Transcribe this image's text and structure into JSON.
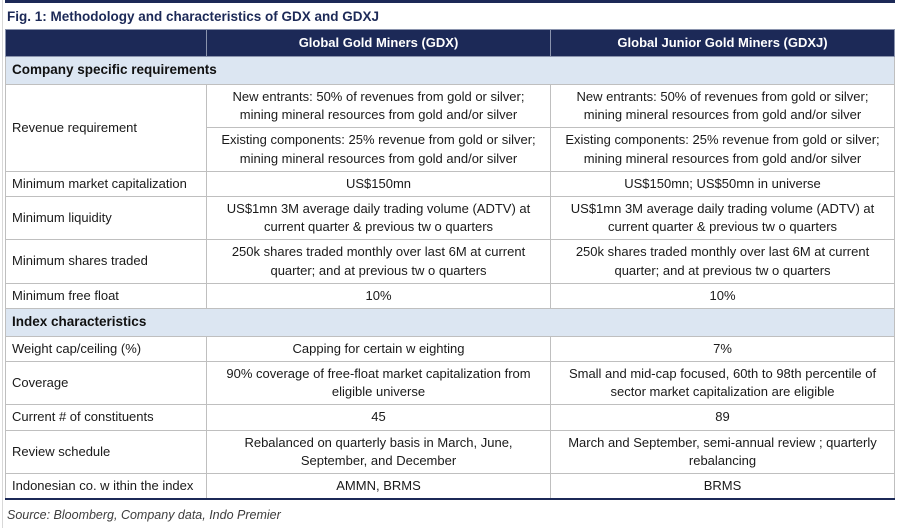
{
  "title": "Fig. 1: Methodology and characteristics of GDX and GDXJ",
  "columns": [
    "Global Gold Miners (GDX)",
    "Global Junior Gold Miners (GDXJ)"
  ],
  "sections": [
    {
      "label": "Company specific requirements",
      "rows": [
        {
          "label": "Revenue requirement",
          "sub": [
            {
              "gdx": "New entrants: 50% of revenues from gold or silver; mining mineral resources from gold and/or silver",
              "gdxj": "New entrants: 50% of revenues from gold or silver; mining mineral resources from gold and/or silver"
            },
            {
              "gdx": "Existing components: 25% revenue from gold or silver; mining mineral resources from gold and/or silver",
              "gdxj": "Existing components: 25% revenue from gold or silver; mining mineral resources from gold and/or silver"
            }
          ]
        },
        {
          "label": "Minimum market capitalization",
          "gdx": "US$150mn",
          "gdxj": "US$150mn; US$50mn in universe"
        },
        {
          "label": "Minimum liquidity",
          "gdx": "US$1mn 3M average daily trading volume (ADTV) at current quarter & previous tw o quarters",
          "gdxj": "US$1mn 3M average daily trading volume (ADTV) at current quarter & previous tw o quarters"
        },
        {
          "label": "Minimum shares traded",
          "gdx": "250k shares traded monthly over last 6M at current quarter; and at previous tw o quarters",
          "gdxj": "250k shares traded monthly over last 6M at current quarter; and at previous tw o quarters"
        },
        {
          "label": "Minimum free float",
          "gdx": "10%",
          "gdxj": "10%"
        }
      ]
    },
    {
      "label": "Index characteristics",
      "rows": [
        {
          "label": "Weight cap/ceiling (%)",
          "gdx": "Capping for certain w eighting",
          "gdxj": "7%"
        },
        {
          "label": "Coverage",
          "gdx": "90% coverage of free-float market capitalization from eligible universe",
          "gdxj": "Small and mid-cap focused, 60th to 98th percentile of sector market capitalization are eligible"
        },
        {
          "label": "Current # of constituents",
          "gdx": "45",
          "gdxj": "89"
        },
        {
          "label": "Review schedule",
          "gdx": "Rebalanced on quarterly basis in March, June, September, and December",
          "gdxj": "March and September, semi-annual review ; quarterly rebalancing"
        },
        {
          "label": "Indonesian co. w ithin the index",
          "gdx": "AMMN, BRMS",
          "gdxj": "BRMS"
        }
      ]
    }
  ],
  "source": "Source: Bloomberg, Company data, Indo Premier",
  "colors": {
    "navy": "#1c2957",
    "section_bg": "#dce6f2",
    "grid": "#bfbfbf"
  }
}
